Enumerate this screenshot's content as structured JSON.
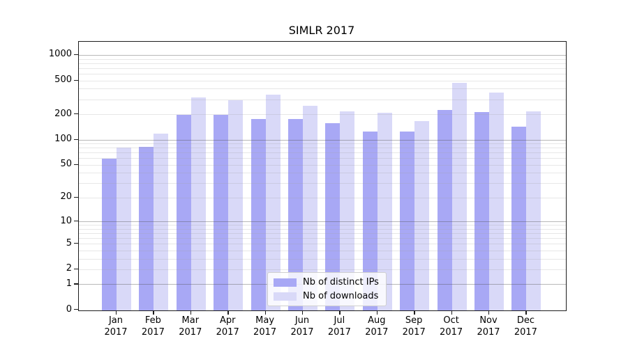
{
  "chart_data": {
    "type": "bar",
    "title": "SIMLR 2017",
    "categories": [
      "Jan 2017",
      "Feb 2017",
      "Mar 2017",
      "Apr 2017",
      "May 2017",
      "Jun 2017",
      "Jul 2017",
      "Aug 2017",
      "Sep 2017",
      "Oct 2017",
      "Nov 2017",
      "Dec 2017"
    ],
    "series": [
      {
        "name": "Nb of distinct IPs",
        "color": "#a8a8f5",
        "values": [
          60,
          84,
          200,
          200,
          177,
          180,
          158,
          127,
          127,
          230,
          218,
          145
        ]
      },
      {
        "name": "Nb of downloads",
        "color": "#d9d9f8",
        "values": [
          82,
          121,
          320,
          300,
          345,
          255,
          220,
          210,
          170,
          480,
          370,
          222
        ]
      }
    ],
    "xlabel": "",
    "ylabel": "",
    "yscale": "log1p",
    "ylim": [
      0,
      1380
    ],
    "ytick_labels": [
      "0",
      "1",
      "2",
      "5",
      "10",
      "20",
      "50",
      "100",
      "200",
      "500",
      "1000"
    ],
    "ytick_values": [
      0,
      1,
      2,
      5,
      10,
      20,
      50,
      100,
      200,
      500,
      1000
    ],
    "grid": "on",
    "legend_position": "lower-center-inside"
  },
  "colors": {
    "major_gridline": "#b3b3b3",
    "minor_gridline": "#e7e7e7",
    "axis": "#1c1c1c",
    "background": "#ffffff"
  }
}
